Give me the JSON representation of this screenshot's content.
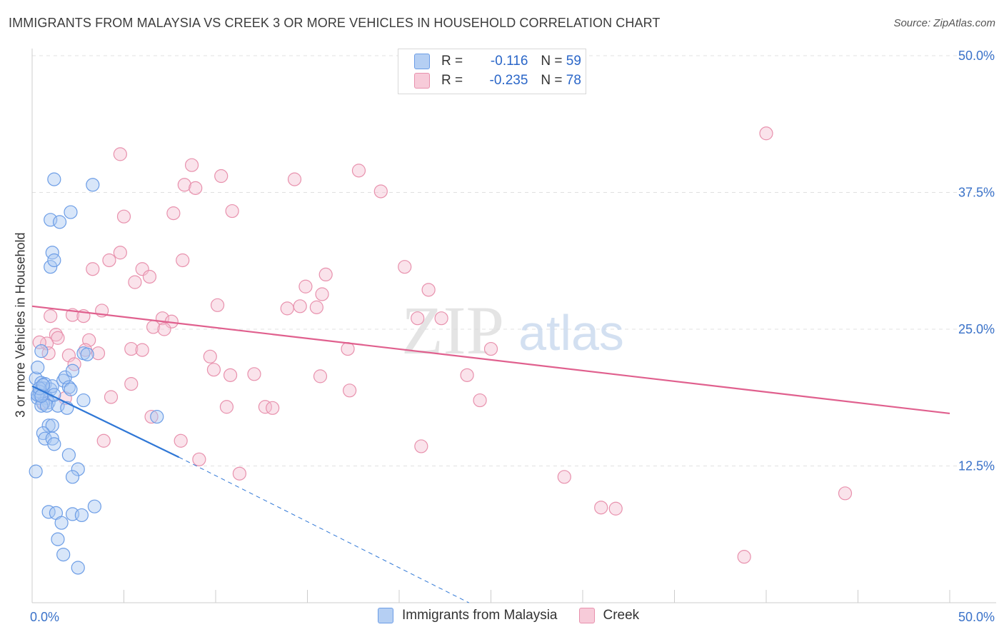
{
  "title": "IMMIGRANTS FROM MALAYSIA VS CREEK 3 OR MORE VEHICLES IN HOUSEHOLD CORRELATION CHART",
  "source": "Source: ZipAtlas.com",
  "watermark": {
    "zip": "ZIP",
    "atlas": "atlas"
  },
  "legend": {
    "rows": [
      {
        "r_label": "R =",
        "r_value": "-0.116",
        "n_label": "N =",
        "n_value": "59"
      },
      {
        "r_label": "R =",
        "r_value": "-0.235",
        "n_label": "N =",
        "n_value": "78"
      }
    ]
  },
  "chart_data": {
    "type": "scatter",
    "title": "IMMIGRANTS FROM MALAYSIA VS CREEK 3 OR MORE VEHICLES IN HOUSEHOLD CORRELATION CHART",
    "xlabel": "",
    "ylabel": "3 or more Vehicles in Household",
    "xlim": [
      0,
      50
    ],
    "ylim": [
      0,
      50
    ],
    "x_tick_labels": [
      "0.0%",
      "50.0%"
    ],
    "y_ticks": [
      12.5,
      25.0,
      37.5,
      50.0
    ],
    "y_tick_labels": [
      "12.5%",
      "25.0%",
      "37.5%",
      "50.0%"
    ],
    "series": [
      {
        "name": "Immigrants from Malaysia",
        "color": "#6c9de6",
        "fill": "#a9c8f2",
        "r": "-0.116",
        "n": "59",
        "points": [
          [
            0.2,
            20.5
          ],
          [
            0.3,
            21.5
          ],
          [
            0.4,
            19.0
          ],
          [
            0.3,
            18.7
          ],
          [
            0.5,
            20.1
          ],
          [
            0.6,
            19.6
          ],
          [
            0.7,
            20.0
          ],
          [
            0.4,
            19.3
          ],
          [
            0.2,
            12.0
          ],
          [
            0.5,
            23.0
          ],
          [
            1.0,
            19.5
          ],
          [
            1.1,
            19.8
          ],
          [
            0.8,
            18.7
          ],
          [
            0.9,
            18.3
          ],
          [
            0.6,
            18.2
          ],
          [
            0.5,
            18.0
          ],
          [
            0.8,
            18.0
          ],
          [
            1.4,
            18.0
          ],
          [
            1.2,
            19.0
          ],
          [
            1.7,
            20.3
          ],
          [
            1.8,
            20.6
          ],
          [
            2.0,
            19.7
          ],
          [
            2.1,
            19.5
          ],
          [
            2.2,
            21.2
          ],
          [
            2.8,
            22.8
          ],
          [
            2.8,
            18.5
          ],
          [
            0.9,
            16.2
          ],
          [
            1.1,
            16.2
          ],
          [
            0.6,
            15.5
          ],
          [
            0.7,
            15.0
          ],
          [
            1.1,
            15.0
          ],
          [
            1.2,
            14.5
          ],
          [
            2.0,
            13.5
          ],
          [
            2.5,
            12.2
          ],
          [
            2.2,
            11.5
          ],
          [
            0.9,
            8.3
          ],
          [
            1.3,
            8.2
          ],
          [
            2.2,
            8.1
          ],
          [
            2.7,
            8.0
          ],
          [
            3.4,
            8.8
          ],
          [
            1.6,
            7.3
          ],
          [
            1.4,
            5.8
          ],
          [
            1.7,
            4.4
          ],
          [
            2.5,
            3.2
          ],
          [
            1.1,
            32.0
          ],
          [
            1.0,
            30.7
          ],
          [
            1.2,
            31.3
          ],
          [
            1.0,
            35.0
          ],
          [
            1.5,
            34.8
          ],
          [
            2.1,
            35.7
          ],
          [
            1.2,
            38.7
          ],
          [
            3.3,
            38.2
          ],
          [
            0.3,
            19.0
          ],
          [
            0.4,
            19.6
          ],
          [
            0.5,
            18.9
          ],
          [
            0.6,
            19.9
          ],
          [
            6.8,
            17.0
          ],
          [
            1.9,
            17.8
          ],
          [
            3.0,
            22.7
          ]
        ],
        "trend": {
          "x": [
            0,
            8.0
          ],
          "y": [
            19.8,
            13.3
          ]
        },
        "trend_extension": {
          "x": [
            8.0,
            23.8
          ],
          "y": [
            13.3,
            0
          ]
        }
      },
      {
        "name": "Creek",
        "color": "#e891ad",
        "fill": "#f5c2d3",
        "r": "-0.235",
        "n": "78",
        "points": [
          [
            1.0,
            26.2
          ],
          [
            1.3,
            24.5
          ],
          [
            1.4,
            24.2
          ],
          [
            0.8,
            23.7
          ],
          [
            0.4,
            23.8
          ],
          [
            0.9,
            22.8
          ],
          [
            2.0,
            22.6
          ],
          [
            2.2,
            26.3
          ],
          [
            2.8,
            26.2
          ],
          [
            3.1,
            24.0
          ],
          [
            2.9,
            23.1
          ],
          [
            3.6,
            22.8
          ],
          [
            3.8,
            26.7
          ],
          [
            2.3,
            21.8
          ],
          [
            5.0,
            35.3
          ],
          [
            4.8,
            41.0
          ],
          [
            4.2,
            31.3
          ],
          [
            4.8,
            32.0
          ],
          [
            3.3,
            30.5
          ],
          [
            5.6,
            29.3
          ],
          [
            6.0,
            30.5
          ],
          [
            6.4,
            29.8
          ],
          [
            5.4,
            23.2
          ],
          [
            6.0,
            23.1
          ],
          [
            5.4,
            20.0
          ],
          [
            4.3,
            18.8
          ],
          [
            3.9,
            14.8
          ],
          [
            6.6,
            25.2
          ],
          [
            7.1,
            26.0
          ],
          [
            7.6,
            25.7
          ],
          [
            7.2,
            25.0
          ],
          [
            7.7,
            35.6
          ],
          [
            8.3,
            38.2
          ],
          [
            8.7,
            40.0
          ],
          [
            8.9,
            37.9
          ],
          [
            8.2,
            31.3
          ],
          [
            10.3,
            39.0
          ],
          [
            10.9,
            35.8
          ],
          [
            9.7,
            22.5
          ],
          [
            9.9,
            21.3
          ],
          [
            10.1,
            27.2
          ],
          [
            10.6,
            17.9
          ],
          [
            10.8,
            20.8
          ],
          [
            12.1,
            20.9
          ],
          [
            12.7,
            17.9
          ],
          [
            13.1,
            17.8
          ],
          [
            13.9,
            26.9
          ],
          [
            14.3,
            38.7
          ],
          [
            14.6,
            27.1
          ],
          [
            14.9,
            28.9
          ],
          [
            15.5,
            27.0
          ],
          [
            15.8,
            28.2
          ],
          [
            16.0,
            30.0
          ],
          [
            15.7,
            20.7
          ],
          [
            17.2,
            23.2
          ],
          [
            17.3,
            19.4
          ],
          [
            17.8,
            39.5
          ],
          [
            19.0,
            37.6
          ],
          [
            20.3,
            30.7
          ],
          [
            21.0,
            26.0
          ],
          [
            21.2,
            14.3
          ],
          [
            21.6,
            28.6
          ],
          [
            22.3,
            26.0
          ],
          [
            23.7,
            20.8
          ],
          [
            24.4,
            18.5
          ],
          [
            25.0,
            23.2
          ],
          [
            8.1,
            14.8
          ],
          [
            9.1,
            13.1
          ],
          [
            11.3,
            11.8
          ],
          [
            29.0,
            11.5
          ],
          [
            31.0,
            8.7
          ],
          [
            31.8,
            8.6
          ],
          [
            40.0,
            42.9
          ],
          [
            44.3,
            10.0
          ],
          [
            38.8,
            4.2
          ],
          [
            0.6,
            18.3
          ],
          [
            1.8,
            18.7
          ],
          [
            6.5,
            17.0
          ]
        ],
        "trend": {
          "x": [
            0,
            50
          ],
          "y": [
            27.1,
            17.3
          ]
        }
      }
    ]
  }
}
